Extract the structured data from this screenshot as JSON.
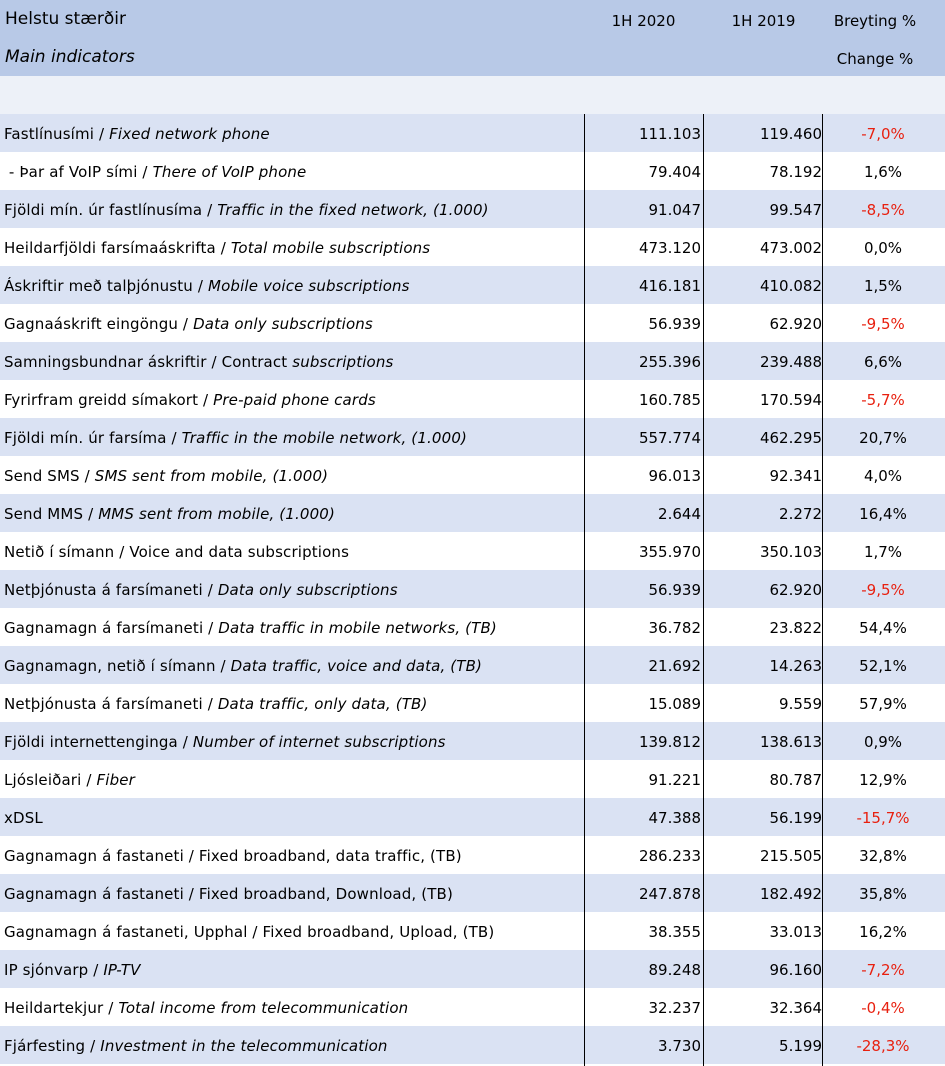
{
  "header": {
    "title": "Helstu stærðir",
    "subtitle": "Main indicators",
    "col1": "1H 2020",
    "col2": "1H 2019",
    "col3": "Breyting %",
    "col3_sub": "Change %"
  },
  "rows": [
    {
      "is": "Fastlínusími / ",
      "en": "Fixed network phone",
      "v2020": "111.103",
      "v2019": "119.460",
      "change": "-7,0%",
      "negative": true
    },
    {
      "is": " - Þar af VoIP sími / ",
      "en": "There of VoIP phone",
      "v2020": "79.404",
      "v2019": "78.192",
      "change": "1,6%",
      "negative": false
    },
    {
      "is": "Fjöldi mín. úr fastlínusíma / ",
      "en": "Traffic in the fixed network, (1.000)",
      "v2020": "91.047",
      "v2019": "99.547",
      "change": "-8,5%",
      "negative": true
    },
    {
      "is": "Heildarfjöldi farsímaáskrifta / ",
      "en": "Total mobile subscriptions",
      "v2020": "473.120",
      "v2019": "473.002",
      "change": "0,0%",
      "negative": false
    },
    {
      "is": "Áskriftir með talþjónustu / ",
      "en": "Mobile voice subscriptions",
      "v2020": "416.181",
      "v2019": "410.082",
      "change": "1,5%",
      "negative": false
    },
    {
      "is": "Gagnaáskrift eingöngu / ",
      "en": "Data only subscriptions",
      "v2020": "56.939",
      "v2019": "62.920",
      "change": "-9,5%",
      "negative": true
    },
    {
      "is": "Samningsbundnar áskriftir / Contract ",
      "en": "subscriptions",
      "v2020": "255.396",
      "v2019": "239.488",
      "change": "6,6%",
      "negative": false
    },
    {
      "is": "Fyrirfram greidd símakort / ",
      "en": "Pre-paid phone cards",
      "v2020": "160.785",
      "v2019": "170.594",
      "change": "-5,7%",
      "negative": true
    },
    {
      "is": "Fjöldi mín. úr farsíma / ",
      "en": "Traffic in the mobile network, (1.000)",
      "v2020": "557.774",
      "v2019": "462.295",
      "change": "20,7%",
      "negative": false
    },
    {
      "is": "Send SMS / ",
      "en": "SMS sent from mobile, (1.000)",
      "v2020": "96.013",
      "v2019": "92.341",
      "change": "4,0%",
      "negative": false
    },
    {
      "is": "Send MMS / ",
      "en": "MMS sent from mobile, (1.000)",
      "v2020": "2.644",
      "v2019": "2.272",
      "change": "16,4%",
      "negative": false
    },
    {
      "is": "Netið í símann / Voice and data subscriptions",
      "en": "",
      "v2020": "355.970",
      "v2019": "350.103",
      "change": "1,7%",
      "negative": false
    },
    {
      "is": "Netþjónusta á farsímaneti / ",
      "en": "Data only subscriptions",
      "v2020": "56.939",
      "v2019": "62.920",
      "change": "-9,5%",
      "negative": true
    },
    {
      "is": "Gagnamagn á farsímaneti / ",
      "en": "Data traffic in mobile networks, (TB)",
      "v2020": "36.782",
      "v2019": "23.822",
      "change": "54,4%",
      "negative": false
    },
    {
      "is": "Gagnamagn, netið í símann / ",
      "en": "Data traffic, voice and data, (TB)",
      "v2020": "21.692",
      "v2019": "14.263",
      "change": "52,1%",
      "negative": false
    },
    {
      "is": "Netþjónusta á farsímaneti / ",
      "en": "Data traffic, only data, (TB)",
      "v2020": "15.089",
      "v2019": "9.559",
      "change": "57,9%",
      "negative": false
    },
    {
      "is": "Fjöldi internettenginga / ",
      "en": "Number of internet subscriptions",
      "v2020": "139.812",
      "v2019": "138.613",
      "change": "0,9%",
      "negative": false
    },
    {
      "is": "Ljósleiðari / ",
      "en": "Fiber",
      "v2020": "91.221",
      "v2019": "80.787",
      "change": "12,9%",
      "negative": false
    },
    {
      "is": "xDSL",
      "en": "",
      "v2020": "47.388",
      "v2019": "56.199",
      "change": "-15,7%",
      "negative": true
    },
    {
      "is": "Gagnamagn á fastaneti / Fixed broadband, data traffic, (TB)",
      "en": "",
      "v2020": "286.233",
      "v2019": "215.505",
      "change": "32,8%",
      "negative": false
    },
    {
      "is": "Gagnamagn á fastaneti / Fixed broadband, Download, (TB)",
      "en": "",
      "v2020": "247.878",
      "v2019": "182.492",
      "change": "35,8%",
      "negative": false
    },
    {
      "is": "Gagnamagn á fastaneti, Upphal / Fixed broadband, Upload, (TB)",
      "en": "",
      "v2020": "38.355",
      "v2019": "33.013",
      "change": "16,2%",
      "negative": false
    },
    {
      "is": "IP sjónvarp / ",
      "en": "IP-TV",
      "v2020": "89.248",
      "v2019": "96.160",
      "change": "-7,2%",
      "negative": true
    },
    {
      "is": "Heildartekjur / ",
      "en": "Total income from telecommunication",
      "v2020": "32.237",
      "v2019": "32.364",
      "change": "-0,4%",
      "negative": true
    },
    {
      "is": "Fjárfesting / ",
      "en": "Investment in the telecommunication",
      "v2020": "3.730",
      "v2019": "5.199",
      "change": "-28,3%",
      "negative": true
    }
  ],
  "colors": {
    "header_bg": "#b8c9e7",
    "row_band": "#dae2f3",
    "negative": "#e8200f"
  }
}
